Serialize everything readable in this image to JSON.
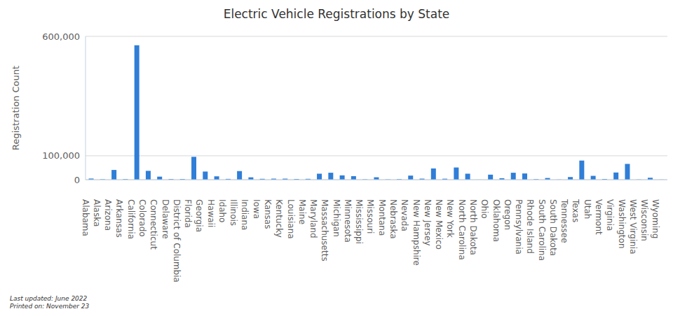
{
  "chart_data": {
    "type": "bar",
    "title": "Electric Vehicle Registrations by State",
    "y_label": "Registration Count",
    "categories": [
      "Alabama",
      "Alaska",
      "Arizona",
      "Arkansas",
      "California",
      "Colorado",
      "Connecticut",
      "Delaware",
      "District of Columbia",
      "Florida",
      "Georgia",
      "Hawaii",
      "Idaho",
      "Illinois",
      "Indiana",
      "Iowa",
      "Kansas",
      "Kentucky",
      "Louisiana",
      "Maine",
      "Maryland",
      "Massachusetts",
      "Michigan",
      "Minnesota",
      "Mississippi",
      "Missouri",
      "Montana",
      "Nebraska",
      "Nevada",
      "New Hampshire",
      "New Jersey",
      "New Mexico",
      "New York",
      "North Carolina",
      "North Dakota",
      "Ohio",
      "Oklahoma",
      "Oregon",
      "Pennsylvania",
      "Rhode Island",
      "South Carolina",
      "South Dakota",
      "Tennessee",
      "Texas",
      "Utah",
      "Vermont",
      "Virginia",
      "Washington",
      "West Virginia",
      "Wisconsin",
      "Wyoming"
    ],
    "values": [
      4700,
      1700,
      40700,
      2400,
      563000,
      37000,
      12700,
      2700,
      2800,
      95600,
      34000,
      14000,
      3300,
      36000,
      9800,
      3600,
      4300,
      4300,
      3000,
      3500,
      25000,
      29000,
      18000,
      14800,
      1100,
      10000,
      1200,
      2300,
      17000,
      4300,
      47000,
      4000,
      51000,
      25000,
      300,
      21000,
      6000,
      29000,
      26000,
      2200,
      7000,
      600,
      11000,
      80000,
      16000,
      3000,
      30000,
      66000,
      800,
      8000,
      400
    ],
    "color": "#2f7ed8",
    "ylim": [
      0,
      600000
    ],
    "yticks": [
      0,
      {
        "value": 100000,
        "label": "100,000"
      },
      {
        "value": 600000,
        "label": "600,000"
      }
    ],
    "grid": true,
    "annotations": [
      "Last updated: June 2022",
      "Printed on: November 23"
    ]
  }
}
